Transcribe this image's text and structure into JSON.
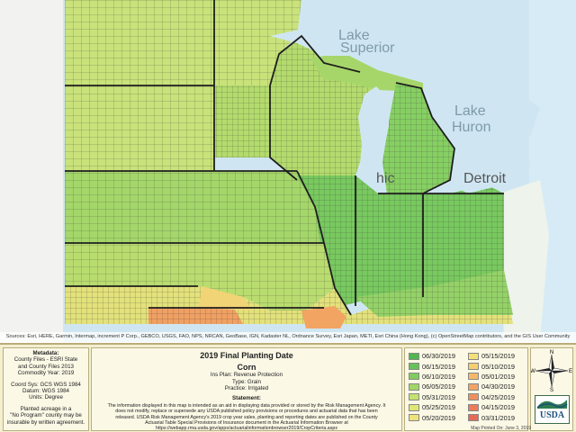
{
  "map": {
    "water_labels": {
      "superior": [
        "Lake",
        "Superior"
      ],
      "huron": [
        "Lake",
        "Huron"
      ],
      "detroit": "Detroit",
      "chicago": "hic"
    },
    "attribution": "Sources: Esri, HERE, Garmin, Intermap, increment P Corp., GEBCO, USGS, FAO, NPS, NRCAN, GeoBase, IGN, Kadaster NL, Ordnance Survey, Esri Japan, METI, Esri China (Hong Kong), (c) OpenStreetMap contributors, and the GIS User Community",
    "colors": {
      "water": "#cfe6f2",
      "land_outside": "#e8eee9",
      "north": "#c9e27a",
      "mid": "#a4d66a",
      "green": "#86cf63",
      "deep": "#72c65e",
      "yellow": "#e9e27d",
      "orange": "#f0a062",
      "borders": "#222222"
    }
  },
  "metadata": {
    "title": "Metadata:",
    "lines1": [
      "County Files - ESRI State",
      "and County Files 2013",
      "Commodity Year: 2019"
    ],
    "lines2": [
      "Coord Sys: GCS WGS 1984",
      "Datum: WGS 1984",
      "Units: Degree"
    ],
    "lines3": [
      "Planted acreage in a",
      "\"No Program\" county may be",
      "insurable by written agreement."
    ]
  },
  "center": {
    "title1": "2019 Final Planting Date",
    "title2": "Corn",
    "ins_plan": "Ins Plan: Revenue Protection",
    "type": "Type: Grain",
    "practice": "Practice: Irrigated",
    "statement_hdr": "Statement:",
    "statement": "The information displayed in this map is intended as an aid in displaying data provided or stored by the Risk Management Agency. It does not modify, replace or supersede any USDA published policy provisions or procedures and actuarial data that has been released. USDA Risk Management Agency's 2019 crop year sales, planting and reporting dates are published on the County Actuarial Table Special Provisions of Insurance document in the Actuarial Information Browser at https://webapp.rma.usda.gov/apps/actuarialinformationbrowser2019/CropCriteria.aspx"
  },
  "legend": {
    "col1": [
      {
        "label": "06/30/2019",
        "color": "#4fb74e"
      },
      {
        "label": "06/15/2019",
        "color": "#66c15b"
      },
      {
        "label": "06/10/2019",
        "color": "#80cb61"
      },
      {
        "label": "06/05/2019",
        "color": "#a2d668"
      },
      {
        "label": "05/31/2019",
        "color": "#c4e270"
      },
      {
        "label": "05/25/2019",
        "color": "#dfe676"
      },
      {
        "label": "05/20/2019",
        "color": "#eee27a"
      }
    ],
    "col2": [
      {
        "label": "05/15/2019",
        "color": "#f5e07a"
      },
      {
        "label": "05/10/2019",
        "color": "#f6ce72"
      },
      {
        "label": "05/01/2019",
        "color": "#f5b96a"
      },
      {
        "label": "04/30/2019",
        "color": "#f2a463"
      },
      {
        "label": "04/25/2019",
        "color": "#ef8f5e"
      },
      {
        "label": "04/15/2019",
        "color": "#ec7b5a"
      },
      {
        "label": "03/31/2019",
        "color": "#e76a57"
      }
    ]
  },
  "right": {
    "compass": {
      "n": "N",
      "s": "S",
      "e": "E",
      "w": "W"
    },
    "logo_text": "USDA",
    "printed": "Map Printed On: June 3, 2019"
  }
}
